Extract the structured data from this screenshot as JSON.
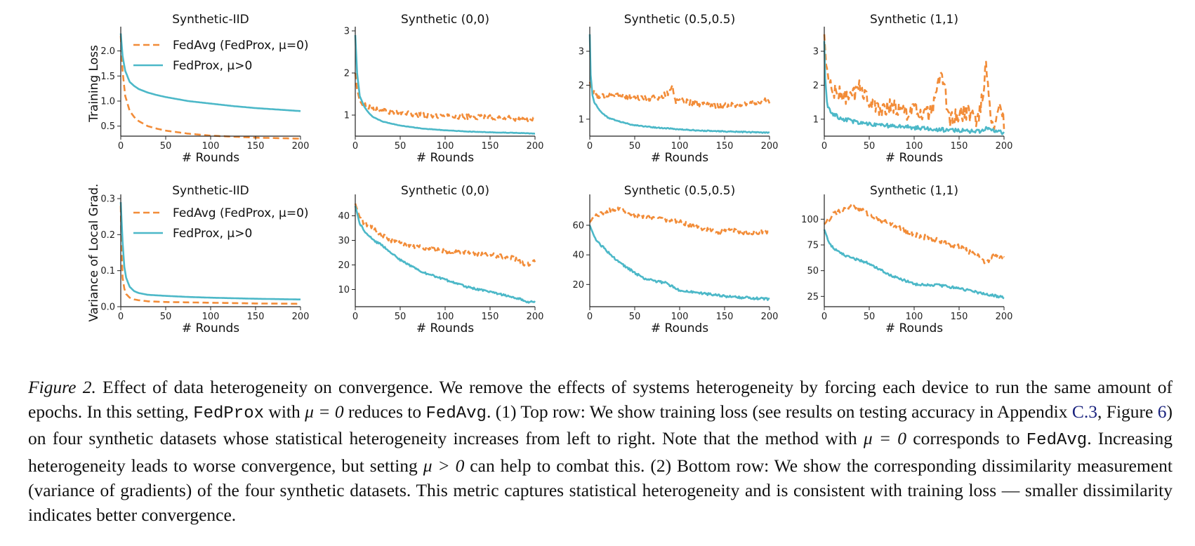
{
  "figure": {
    "series_styles": {
      "fedavg": {
        "color": "#F28C38",
        "dash": true
      },
      "fedprox": {
        "color": "#4CB8C8",
        "dash": false
      }
    },
    "legend": {
      "fedavg_label": "FedAvg (FedProx, μ=0)",
      "fedprox_label": "FedProx, μ>0"
    }
  },
  "chart_data": [
    {
      "type": "line",
      "row": 0,
      "col": 0,
      "title": "Synthetic-IID",
      "xlabel": "# Rounds",
      "ylabel": "Training Loss",
      "xlim": [
        0,
        200
      ],
      "ylim": [
        0.3,
        2.4
      ],
      "xticks": [
        "0",
        "50",
        "100",
        "150",
        "200"
      ],
      "yticks": [
        [
          0.5,
          "0.5"
        ],
        [
          1.0,
          "1.0"
        ],
        [
          1.5,
          "1.5"
        ],
        [
          2.0,
          "2.0"
        ]
      ],
      "legend": true,
      "legend_position": "top-right",
      "series": [
        {
          "name": "FedAvg (FedProx, μ=0)",
          "key": "fedavg",
          "x": [
            0,
            2,
            5,
            10,
            15,
            20,
            30,
            40,
            50,
            75,
            100,
            125,
            150,
            175,
            200
          ],
          "y": [
            2.3,
            1.6,
            1.1,
            0.8,
            0.68,
            0.6,
            0.5,
            0.45,
            0.41,
            0.35,
            0.31,
            0.29,
            0.27,
            0.26,
            0.25
          ],
          "noise": 0
        },
        {
          "name": "FedProx, μ>0",
          "key": "fedprox",
          "x": [
            0,
            2,
            5,
            10,
            15,
            20,
            30,
            40,
            50,
            75,
            100,
            125,
            150,
            175,
            200
          ],
          "y": [
            2.35,
            1.9,
            1.6,
            1.38,
            1.3,
            1.24,
            1.17,
            1.12,
            1.08,
            1.0,
            0.95,
            0.9,
            0.86,
            0.83,
            0.8
          ],
          "noise": 0
        }
      ]
    },
    {
      "type": "line",
      "row": 0,
      "col": 1,
      "title": "Synthetic (0,0)",
      "xlabel": "# Rounds",
      "ylabel": "",
      "xlim": [
        0,
        200
      ],
      "ylim": [
        0.5,
        3.0
      ],
      "xticks": [
        "0",
        "50",
        "100",
        "150",
        "200"
      ],
      "yticks": [
        [
          1,
          "1"
        ],
        [
          2,
          "2"
        ],
        [
          3,
          "3"
        ]
      ],
      "legend": false,
      "series": [
        {
          "key": "fedavg",
          "x": [
            0,
            2,
            5,
            10,
            15,
            20,
            30,
            50,
            75,
            100,
            125,
            150,
            175,
            190,
            200
          ],
          "y": [
            2.0,
            1.6,
            1.35,
            1.25,
            1.2,
            1.15,
            1.1,
            1.05,
            1.0,
            0.98,
            0.96,
            0.95,
            0.92,
            0.9,
            0.88
          ],
          "noise": 0.06
        },
        {
          "key": "fedprox",
          "x": [
            0,
            2,
            5,
            10,
            15,
            20,
            30,
            50,
            75,
            100,
            125,
            150,
            175,
            200
          ],
          "y": [
            2.9,
            2.0,
            1.45,
            1.2,
            1.05,
            0.95,
            0.85,
            0.75,
            0.68,
            0.64,
            0.61,
            0.59,
            0.58,
            0.56
          ],
          "noise": 0.005
        }
      ]
    },
    {
      "type": "line",
      "row": 0,
      "col": 2,
      "title": "Synthetic (0.5,0.5)",
      "xlabel": "# Rounds",
      "ylabel": "",
      "xlim": [
        0,
        200
      ],
      "ylim": [
        0.5,
        3.6
      ],
      "xticks": [
        "0",
        "50",
        "100",
        "150",
        "200"
      ],
      "yticks": [
        [
          1,
          "1"
        ],
        [
          2,
          "2"
        ],
        [
          3,
          "3"
        ]
      ],
      "legend": false,
      "series": [
        {
          "key": "fedavg",
          "x": [
            0,
            2,
            5,
            10,
            15,
            20,
            30,
            50,
            75,
            88,
            92,
            95,
            100,
            125,
            150,
            175,
            200
          ],
          "y": [
            2.1,
            1.9,
            1.8,
            1.6,
            1.7,
            1.75,
            1.7,
            1.65,
            1.6,
            1.8,
            2.0,
            1.5,
            1.55,
            1.45,
            1.4,
            1.45,
            1.55
          ],
          "noise": 0.09
        },
        {
          "key": "fedprox",
          "x": [
            0,
            1,
            3,
            5,
            10,
            15,
            20,
            30,
            50,
            75,
            100,
            125,
            150,
            175,
            200
          ],
          "y": [
            3.5,
            2.3,
            1.7,
            1.5,
            1.3,
            1.15,
            1.05,
            0.95,
            0.82,
            0.75,
            0.7,
            0.66,
            0.64,
            0.62,
            0.6
          ],
          "noise": 0.015
        }
      ]
    },
    {
      "type": "line",
      "row": 0,
      "col": 3,
      "title": "Synthetic (1,1)",
      "xlabel": "# Rounds",
      "ylabel": "",
      "xlim": [
        0,
        200
      ],
      "ylim": [
        0.5,
        3.6
      ],
      "xticks": [
        "0",
        "50",
        "100",
        "150",
        "200"
      ],
      "yticks": [
        [
          1,
          "1"
        ],
        [
          2,
          "2"
        ],
        [
          3,
          "3"
        ]
      ],
      "legend": false,
      "series": [
        {
          "key": "fedavg",
          "x": [
            0,
            2,
            5,
            10,
            20,
            30,
            40,
            50,
            60,
            75,
            90,
            100,
            110,
            120,
            130,
            140,
            150,
            160,
            170,
            175,
            180,
            185,
            190,
            195,
            200
          ],
          "y": [
            3.5,
            2.6,
            2.1,
            1.8,
            1.7,
            1.6,
            2.0,
            1.5,
            1.3,
            1.4,
            1.2,
            1.3,
            1.1,
            1.2,
            2.3,
            1.0,
            1.1,
            1.2,
            1.0,
            1.5,
            2.6,
            1.0,
            0.9,
            1.5,
            0.9
          ],
          "noise": 0.25
        },
        {
          "key": "fedprox",
          "x": [
            0,
            1,
            3,
            5,
            10,
            20,
            30,
            40,
            50,
            75,
            100,
            125,
            150,
            175,
            180,
            200
          ],
          "y": [
            3.3,
            2.2,
            1.5,
            1.3,
            1.15,
            1.0,
            0.95,
            0.9,
            0.85,
            0.8,
            0.75,
            0.7,
            0.66,
            0.64,
            0.75,
            0.6
          ],
          "noise": 0.06
        }
      ]
    },
    {
      "type": "line",
      "row": 1,
      "col": 0,
      "title": "Synthetic-IID",
      "xlabel": "# Rounds",
      "ylabel": "Variance of Local Grad.",
      "xlim": [
        0,
        200
      ],
      "ylim": [
        0.0,
        0.3
      ],
      "xticks": [
        "0",
        "50",
        "100",
        "150",
        "200"
      ],
      "yticks": [
        [
          0.0,
          "0.0"
        ],
        [
          0.1,
          "0.1"
        ],
        [
          0.2,
          "0.2"
        ],
        [
          0.3,
          "0.3"
        ]
      ],
      "legend": true,
      "legend_position": "top-right",
      "series": [
        {
          "name": "FedAvg (FedProx, μ=0)",
          "key": "fedavg",
          "x": [
            0,
            1,
            2,
            4,
            6,
            10,
            15,
            20,
            30,
            50,
            75,
            100,
            150,
            200
          ],
          "y": [
            0.28,
            0.15,
            0.08,
            0.05,
            0.035,
            0.025,
            0.02,
            0.018,
            0.015,
            0.013,
            0.012,
            0.011,
            0.009,
            0.008
          ],
          "noise": 0
        },
        {
          "name": "FedProx, μ>0",
          "key": "fedprox",
          "x": [
            0,
            2,
            4,
            6,
            10,
            15,
            20,
            30,
            50,
            75,
            100,
            150,
            200
          ],
          "y": [
            0.29,
            0.18,
            0.11,
            0.08,
            0.055,
            0.043,
            0.038,
            0.033,
            0.03,
            0.027,
            0.025,
            0.022,
            0.02
          ],
          "noise": 0
        }
      ]
    },
    {
      "type": "line",
      "row": 1,
      "col": 1,
      "title": "Synthetic (0,0)",
      "xlabel": "# Rounds",
      "ylabel": "",
      "xlim": [
        0,
        200
      ],
      "ylim": [
        3,
        47
      ],
      "xticks": [
        "0",
        "50",
        "100",
        "150",
        "200"
      ],
      "yticks": [
        [
          10,
          "10"
        ],
        [
          20,
          "20"
        ],
        [
          30,
          "30"
        ],
        [
          40,
          "40"
        ]
      ],
      "legend": false,
      "series": [
        {
          "key": "fedavg",
          "x": [
            0,
            5,
            10,
            20,
            30,
            40,
            50,
            75,
            100,
            125,
            150,
            175,
            185,
            190,
            200
          ],
          "y": [
            45,
            39,
            37,
            35,
            32,
            30,
            29,
            27,
            25.5,
            25,
            24,
            23,
            21,
            20,
            21.5
          ],
          "noise": 0.9
        },
        {
          "key": "fedprox",
          "x": [
            0,
            5,
            10,
            20,
            30,
            40,
            50,
            75,
            100,
            125,
            150,
            175,
            185,
            190,
            200
          ],
          "y": [
            44,
            37,
            34,
            30,
            28,
            25,
            22,
            17,
            14,
            11,
            9,
            7,
            6,
            5,
            5
          ],
          "noise": 0.4
        }
      ]
    },
    {
      "type": "line",
      "row": 1,
      "col": 2,
      "title": "Synthetic (0.5,0.5)",
      "xlabel": "# Rounds",
      "ylabel": "",
      "xlim": [
        0,
        200
      ],
      "ylim": [
        5,
        78
      ],
      "xticks": [
        "0",
        "50",
        "100",
        "150",
        "200"
      ],
      "yticks": [
        [
          20,
          "20"
        ],
        [
          40,
          "40"
        ],
        [
          60,
          "60"
        ]
      ],
      "legend": false,
      "series": [
        {
          "key": "fedavg",
          "x": [
            0,
            5,
            10,
            20,
            30,
            40,
            50,
            75,
            100,
            125,
            145,
            150,
            175,
            200
          ],
          "y": [
            62,
            66,
            67,
            70,
            71,
            69,
            67,
            65,
            62,
            58,
            55,
            57,
            55,
            56
          ],
          "noise": 1.6
        },
        {
          "key": "fedprox",
          "x": [
            0,
            5,
            10,
            20,
            30,
            40,
            50,
            60,
            75,
            85,
            100,
            125,
            150,
            175,
            200
          ],
          "y": [
            60,
            52,
            48,
            42,
            36,
            32,
            28,
            24,
            22,
            21,
            16,
            14,
            12,
            11,
            10
          ],
          "noise": 0.8
        }
      ]
    },
    {
      "type": "line",
      "row": 1,
      "col": 3,
      "title": "Synthetic (1,1)",
      "xlabel": "# Rounds",
      "ylabel": "",
      "xlim": [
        0,
        200
      ],
      "ylim": [
        15,
        120
      ],
      "xticks": [
        "0",
        "50",
        "100",
        "150",
        "200"
      ],
      "yticks": [
        [
          25,
          "25"
        ],
        [
          50,
          "50"
        ],
        [
          75,
          "75"
        ],
        [
          100,
          "100"
        ]
      ],
      "legend": false,
      "series": [
        {
          "key": "fedavg",
          "x": [
            0,
            5,
            10,
            20,
            30,
            40,
            50,
            75,
            100,
            125,
            150,
            170,
            180,
            190,
            200
          ],
          "y": [
            95,
            100,
            105,
            108,
            112,
            110,
            104,
            95,
            85,
            80,
            73,
            65,
            58,
            65,
            63
          ],
          "noise": 2.5
        },
        {
          "key": "fedprox",
          "x": [
            0,
            5,
            10,
            20,
            30,
            40,
            50,
            75,
            100,
            125,
            150,
            175,
            200
          ],
          "y": [
            90,
            78,
            72,
            66,
            62,
            60,
            57,
            45,
            37,
            36,
            33,
            28,
            24
          ],
          "noise": 1.2
        }
      ]
    }
  ],
  "caption": {
    "fig_label": "Figure 2.",
    "seg1": " Effect of data heterogeneity on convergence. We remove the effects of systems heterogeneity by forcing each device to run the same amount of epochs. In this setting, ",
    "code_fedprox": "FedProx",
    "seg2": " with ",
    "mu_eq0_a": "μ = 0",
    "seg3": " reduces to ",
    "code_fedavg_a": "FedAvg",
    "seg4": ". (1) Top row: We show training loss (see results on testing accuracy in Appendix ",
    "ref_c3": "C.3",
    "seg5": ", Figure ",
    "ref_fig6": "6",
    "seg6": ") on four synthetic datasets whose statistical heterogeneity increases from left to right. Note that the method with ",
    "mu_eq0_b": "μ = 0",
    "seg7": " corresponds to ",
    "code_fedavg_b": "FedAvg",
    "seg8": ". Increasing heterogeneity leads to worse convergence, but setting ",
    "mu_gt0": "μ > 0",
    "seg9": " can help to combat this. (2) Bottom row: We show the corresponding dissimilarity measurement (variance of gradients) of the four synthetic datasets. This metric captures statistical heterogeneity and is consistent with training loss — smaller dissimilarity indicates better convergence."
  }
}
